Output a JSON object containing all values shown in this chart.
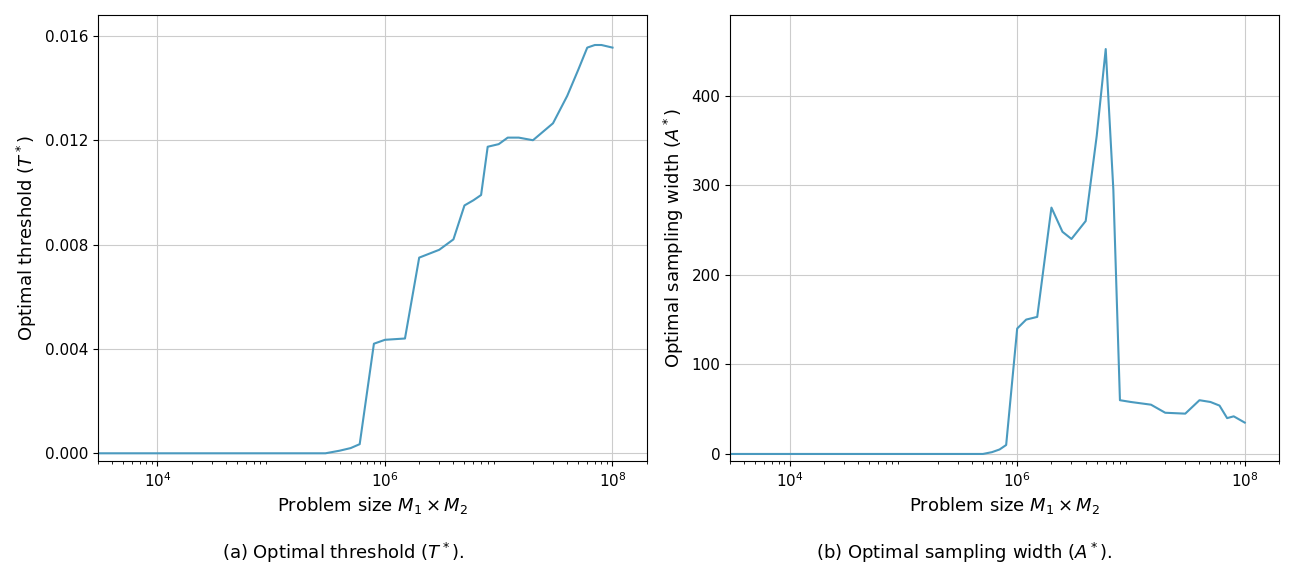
{
  "left_x": [
    3000,
    5000,
    8000,
    10000,
    20000,
    50000,
    100000,
    200000,
    300000,
    400000,
    500000,
    600000,
    800000,
    1000000,
    1500000,
    2000000,
    3000000,
    4000000,
    5000000,
    6000000,
    7000000,
    8000000,
    10000000,
    12000000,
    15000000,
    20000000,
    30000000,
    40000000,
    50000000,
    60000000,
    70000000,
    80000000,
    100000000
  ],
  "left_y": [
    0.0,
    0.0,
    0.0,
    0.0,
    0.0,
    0.0,
    0.0,
    0.0,
    0.0,
    0.0001,
    0.0002,
    0.00035,
    0.0042,
    0.00435,
    0.0044,
    0.0075,
    0.0078,
    0.0082,
    0.0095,
    0.0097,
    0.0099,
    0.01175,
    0.01185,
    0.0121,
    0.0121,
    0.012,
    0.01265,
    0.0137,
    0.0147,
    0.01555,
    0.01565,
    0.01565,
    0.01555
  ],
  "right_x": [
    3000,
    5000,
    8000,
    10000,
    20000,
    50000,
    100000,
    200000,
    300000,
    400000,
    500000,
    600000,
    700000,
    800000,
    1000000,
    1200000,
    1500000,
    2000000,
    2500000,
    3000000,
    4000000,
    5000000,
    6000000,
    7000000,
    8000000,
    10000000,
    15000000,
    20000000,
    30000000,
    40000000,
    50000000,
    60000000,
    70000000,
    80000000,
    100000000
  ],
  "right_y": [
    0,
    0,
    0,
    0,
    0,
    0,
    0,
    0,
    0,
    0,
    0,
    2,
    5,
    10,
    140,
    150,
    153,
    275,
    248,
    240,
    260,
    355,
    452,
    295,
    60,
    58,
    55,
    46,
    45,
    60,
    58,
    54,
    40,
    42,
    35
  ],
  "line_color": "#4a9abf",
  "left_ylabel": "Optimal threshold ($T^*$)",
  "right_ylabel": "Optimal sampling width ($A^*$)",
  "xlabel": "Problem size $M_1 \\times M_2$",
  "left_caption": "(a) Optimal threshold ($T^*$).",
  "right_caption": "(b) Optimal sampling width ($A^*$).",
  "left_ylim": [
    -0.0003,
    0.0168
  ],
  "right_ylim": [
    -8,
    490
  ],
  "left_yticks": [
    0.0,
    0.004,
    0.008,
    0.012,
    0.016
  ],
  "right_yticks": [
    0,
    100,
    200,
    300,
    400
  ],
  "xlim": [
    3000,
    200000000
  ],
  "xticks": [
    10000,
    1000000,
    100000000
  ],
  "grid_color": "#cccccc"
}
